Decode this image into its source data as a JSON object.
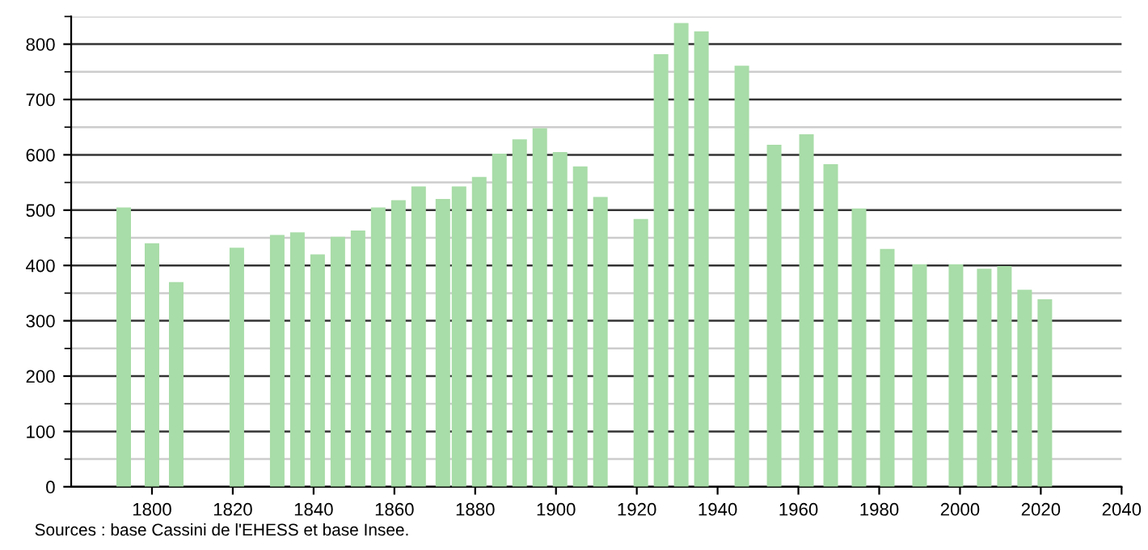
{
  "chart_data": {
    "type": "bar",
    "x": [
      1793,
      1800,
      1806,
      1821,
      1831,
      1836,
      1841,
      1846,
      1851,
      1856,
      1861,
      1866,
      1872,
      1876,
      1881,
      1886,
      1891,
      1896,
      1901,
      1906,
      1911,
      1921,
      1926,
      1931,
      1936,
      1946,
      1954,
      1962,
      1968,
      1975,
      1982,
      1990,
      1999,
      2006,
      2011,
      2016,
      2021
    ],
    "values": [
      505,
      440,
      370,
      432,
      455,
      460,
      420,
      452,
      463,
      505,
      518,
      543,
      520,
      543,
      560,
      602,
      628,
      648,
      605,
      579,
      524,
      484,
      782,
      838,
      823,
      761,
      618,
      637,
      583,
      503,
      430,
      402,
      402,
      394,
      399,
      356,
      339
    ],
    "color": "#a8dca8",
    "xlim": [
      1780,
      2040
    ],
    "xticks": [
      1800,
      1820,
      1840,
      1860,
      1880,
      1900,
      1920,
      1940,
      1960,
      1980,
      2000,
      2020,
      2040
    ],
    "ylim": [
      0,
      850
    ],
    "yticks": [
      0,
      100,
      200,
      300,
      400,
      500,
      600,
      700,
      800
    ],
    "grid": "y",
    "annotations": [
      "Sources : base Cassini de l'EHESS et base Insee."
    ]
  }
}
